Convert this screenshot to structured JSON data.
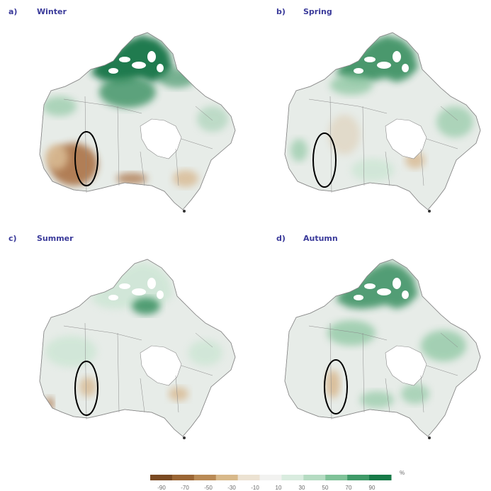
{
  "panels": [
    {
      "letter": "a)",
      "season": "Winter"
    },
    {
      "letter": "b)",
      "season": "Spring"
    },
    {
      "letter": "c)",
      "season": "Summer"
    },
    {
      "letter": "d)",
      "season": "Autumn"
    }
  ],
  "legend": {
    "unit": "%",
    "ticks": [
      "-90",
      "-70",
      "-50",
      "-30",
      "-10",
      "10",
      "30",
      "50",
      "70",
      "90"
    ],
    "colors": [
      "#7a4a22",
      "#9a6534",
      "#b98a55",
      "#d8b98a",
      "#ece2d2",
      "#f2f2f0",
      "#d9ecdf",
      "#b5dbc2",
      "#7fc298",
      "#3f9a68",
      "#177a48"
    ]
  },
  "map_colors": {
    "land_base": "#e7ece8",
    "green_light": "#cfe6d6",
    "green_mid": "#93c9a6",
    "green_dark": "#2f8a58",
    "green_deep": "#167446",
    "brown_light": "#d8b992",
    "brown_dark": "#a76c3c",
    "border": "#8a8a8a",
    "ellipse": "#000000"
  }
}
